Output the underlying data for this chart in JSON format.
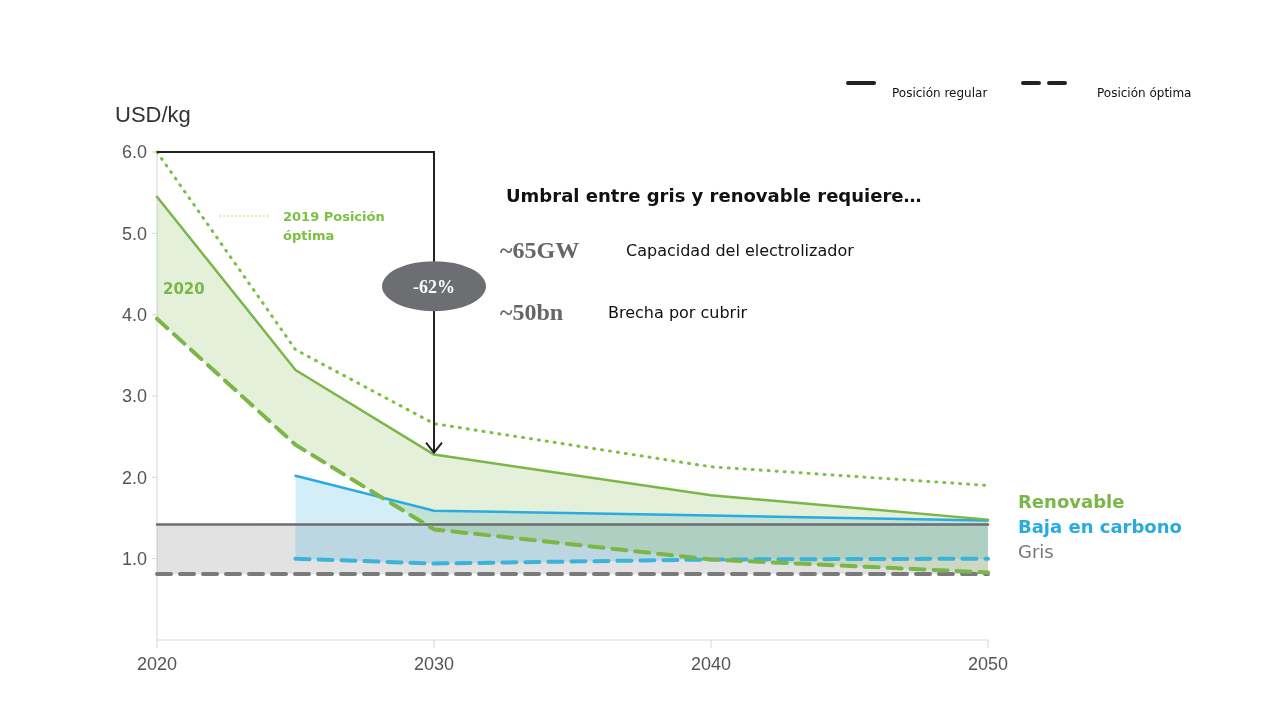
{
  "chart_data": {
    "type": "line",
    "ylabel": "USD/kg",
    "xlim": [
      2020,
      2050
    ],
    "xticks": [
      2020,
      2030,
      2040,
      2050
    ],
    "ylim": [
      0,
      6
    ],
    "yticks": [
      {
        "value": 1,
        "label": "1.0"
      },
      {
        "value": 2,
        "label": "2.0"
      },
      {
        "value": 3,
        "label": "3.0"
      },
      {
        "value": 4,
        "label": "4.0"
      },
      {
        "value": 5,
        "label": "5.0"
      },
      {
        "value": 6,
        "label": "6.0"
      }
    ],
    "grid": false,
    "legend": "top left",
    "series": [
      {
        "name": "Gris",
        "color": "#6d6e71",
        "line_style": "solid",
        "x": [
          2020,
          2050
        ],
        "values": [
          1.42,
          1.42
        ],
        "lower": [
          0.81,
          0.81
        ],
        "upper": [
          1.42,
          1.42
        ]
      },
      {
        "color": "#7a7a7a",
        "line_style": "dashed",
        "x": [
          2020,
          2050
        ],
        "values": [
          0.81,
          0.81
        ]
      },
      {
        "name": "Baja en carbono",
        "color": "#29abe2",
        "line_style": "solid",
        "x": [
          2025,
          2030,
          2040,
          2050
        ],
        "values": [
          2.02,
          1.59,
          1.53,
          1.47
        ],
        "lower": [
          1.0,
          0.94,
          0.99,
          1.0
        ],
        "upper": [
          2.02,
          1.59,
          1.53,
          1.47
        ]
      },
      {
        "color": "#3bb4d9",
        "line_style": "dashed",
        "x": [
          2025,
          2030,
          2040,
          2050
        ],
        "values": [
          1.0,
          0.94,
          0.99,
          1.0
        ]
      },
      {
        "name": "Renovable",
        "color": "#7ab648",
        "line_style": "solid",
        "x": [
          2020,
          2025,
          2030,
          2040,
          2050
        ],
        "values": [
          5.45,
          3.32,
          2.28,
          1.78,
          1.48
        ],
        "lower": [
          3.95,
          2.4,
          1.36,
          0.99,
          0.83
        ],
        "upper": [
          5.45,
          3.32,
          2.28,
          1.78,
          1.48
        ]
      },
      {
        "color": "#7ab648",
        "line_style": "dashed",
        "x": [
          2020,
          2025,
          2030,
          2040,
          2050
        ],
        "values": [
          3.95,
          2.4,
          1.36,
          0.99,
          0.83
        ]
      },
      {
        "name": "2019 Posición óptima",
        "color": "#7ac142",
        "line_style": "dotted",
        "x": [
          2020,
          2025,
          2030,
          2040,
          2050
        ],
        "values": [
          6.0,
          3.57,
          2.66,
          2.13,
          1.9
        ]
      }
    ],
    "annotations": [
      "2020",
      "-62%",
      "Umbral entre gris y renovable requiere…",
      "~65GW",
      "Capacidad del electrolizador",
      "~50bn",
      "Brecha por cubrir",
      "Posición regular",
      "Posición óptima"
    ]
  }
}
